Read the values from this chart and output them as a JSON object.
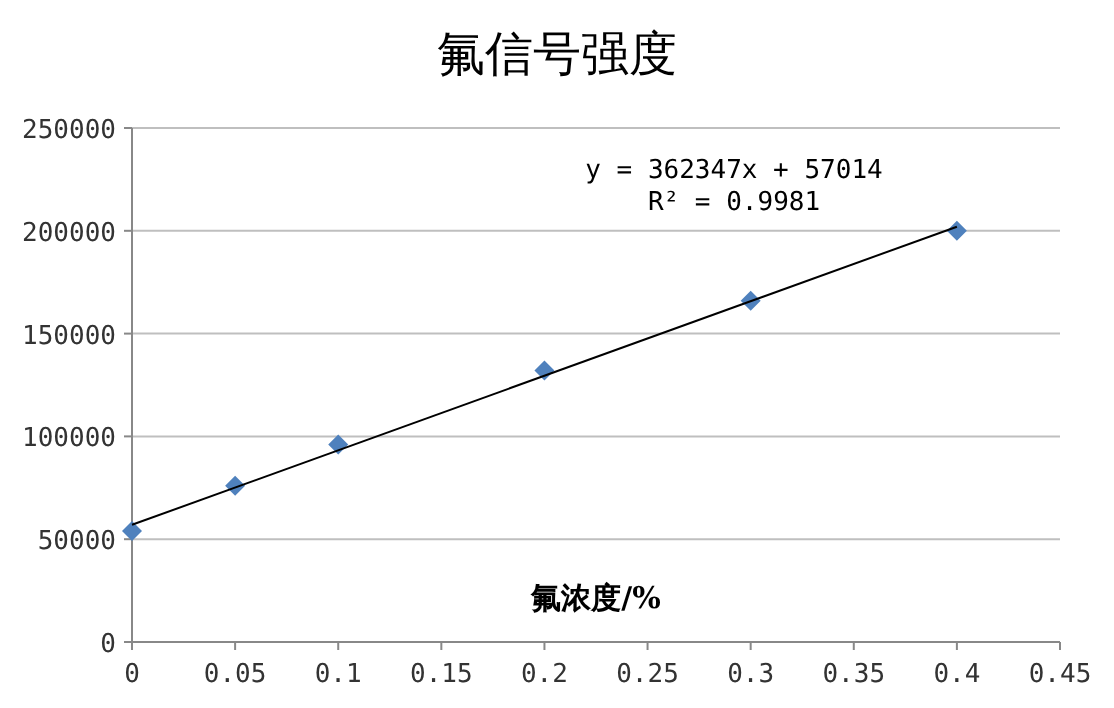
{
  "chart_data": {
    "type": "scatter",
    "title": "氟信号强度",
    "xlabel": "氟浓度/%",
    "x": [
      0,
      0.05,
      0.1,
      0.2,
      0.3,
      0.4
    ],
    "series": [
      {
        "color": "#4f81bd",
        "marker": "diamond",
        "values": [
          54000,
          76000,
          96000,
          132000,
          166000,
          200000
        ]
      },
      {
        "type": "line",
        "color": "#000000",
        "x": [
          0,
          0.4
        ],
        "values": [
          57000,
          202000
        ]
      }
    ],
    "xlim": [
      0,
      0.45
    ],
    "xticks": [
      0,
      0.05,
      0.1,
      0.15,
      0.2,
      0.25,
      0.3,
      0.35,
      0.4,
      0.45
    ],
    "ylim": [
      0,
      250000
    ],
    "yticks": [
      0,
      50000,
      100000,
      150000,
      200000,
      250000
    ],
    "grid": "y",
    "annotations": [
      "y = 362347x + 57014",
      "R² = 0.9981"
    ]
  }
}
